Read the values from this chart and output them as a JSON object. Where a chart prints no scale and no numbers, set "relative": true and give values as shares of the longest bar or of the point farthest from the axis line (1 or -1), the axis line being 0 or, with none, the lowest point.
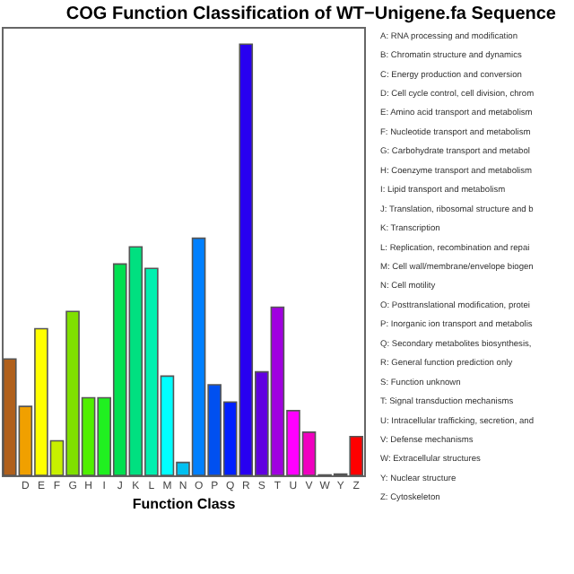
{
  "chart_data": {
    "type": "bar",
    "title": "COG Function Classification of WT−Unigene.fa Sequence",
    "xlabel": "Function Class",
    "relative": true,
    "categories": [
      null,
      "D",
      "E",
      "F",
      "G",
      "H",
      "I",
      "J",
      "K",
      "L",
      "M",
      "N",
      "O",
      "P",
      "Q",
      "R",
      "S",
      "T",
      "U",
      "V",
      "W",
      "Y",
      "Z"
    ],
    "values": [
      0.27,
      0.16,
      0.34,
      0.08,
      0.38,
      0.18,
      0.18,
      0.49,
      0.53,
      0.48,
      0.23,
      0.03,
      0.55,
      0.21,
      0.17,
      1,
      0.24,
      0.39,
      0.15,
      0.1,
      0.001,
      0.003,
      0.09
    ],
    "colors": [
      "#b0601c",
      "#f0a000",
      "#ffff00",
      "#c8f000",
      "#80e000",
      "#50f000",
      "#20f020",
      "#00e050",
      "#00e080",
      "#00f0b0",
      "#00ffff",
      "#00c0f0",
      "#0080ff",
      "#0050f0",
      "#0020ff",
      "#2800f0",
      "#6000e0",
      "#a000e0",
      "#ff00ff",
      "#f000c0",
      "#f00090",
      "#e00050",
      "#ff0000"
    ],
    "grid": false,
    "annotations": [
      "A: RNA processing and modification",
      "B: Chromatin structure and dynamics",
      "C: Energy production and conversion",
      "D: Cell cycle control, cell division, chrom",
      "E: Amino acid transport and metabolism",
      "F: Nucleotide transport and metabolism",
      "G: Carbohydrate transport and metabol",
      "H: Coenzyme transport and metabolism",
      "I: Lipid transport and metabolism",
      "J: Translation, ribosomal structure and b",
      "K: Transcription",
      "L: Replication, recombination and repai",
      "M: Cell wall/membrane/envelope biogen",
      "N: Cell motility",
      "O: Posttranslational modification, protei",
      "P: Inorganic ion transport and metabolis",
      "Q: Secondary metabolites biosynthesis,",
      "R: General function prediction only",
      "S: Function unknown",
      "T: Signal transduction mechanisms",
      "U: Intracellular trafficking, secretion, and",
      "V: Defense mechanisms",
      "W: Extracellular structures",
      "Y: Nuclear structure",
      "Z: Cytoskeleton"
    ]
  }
}
